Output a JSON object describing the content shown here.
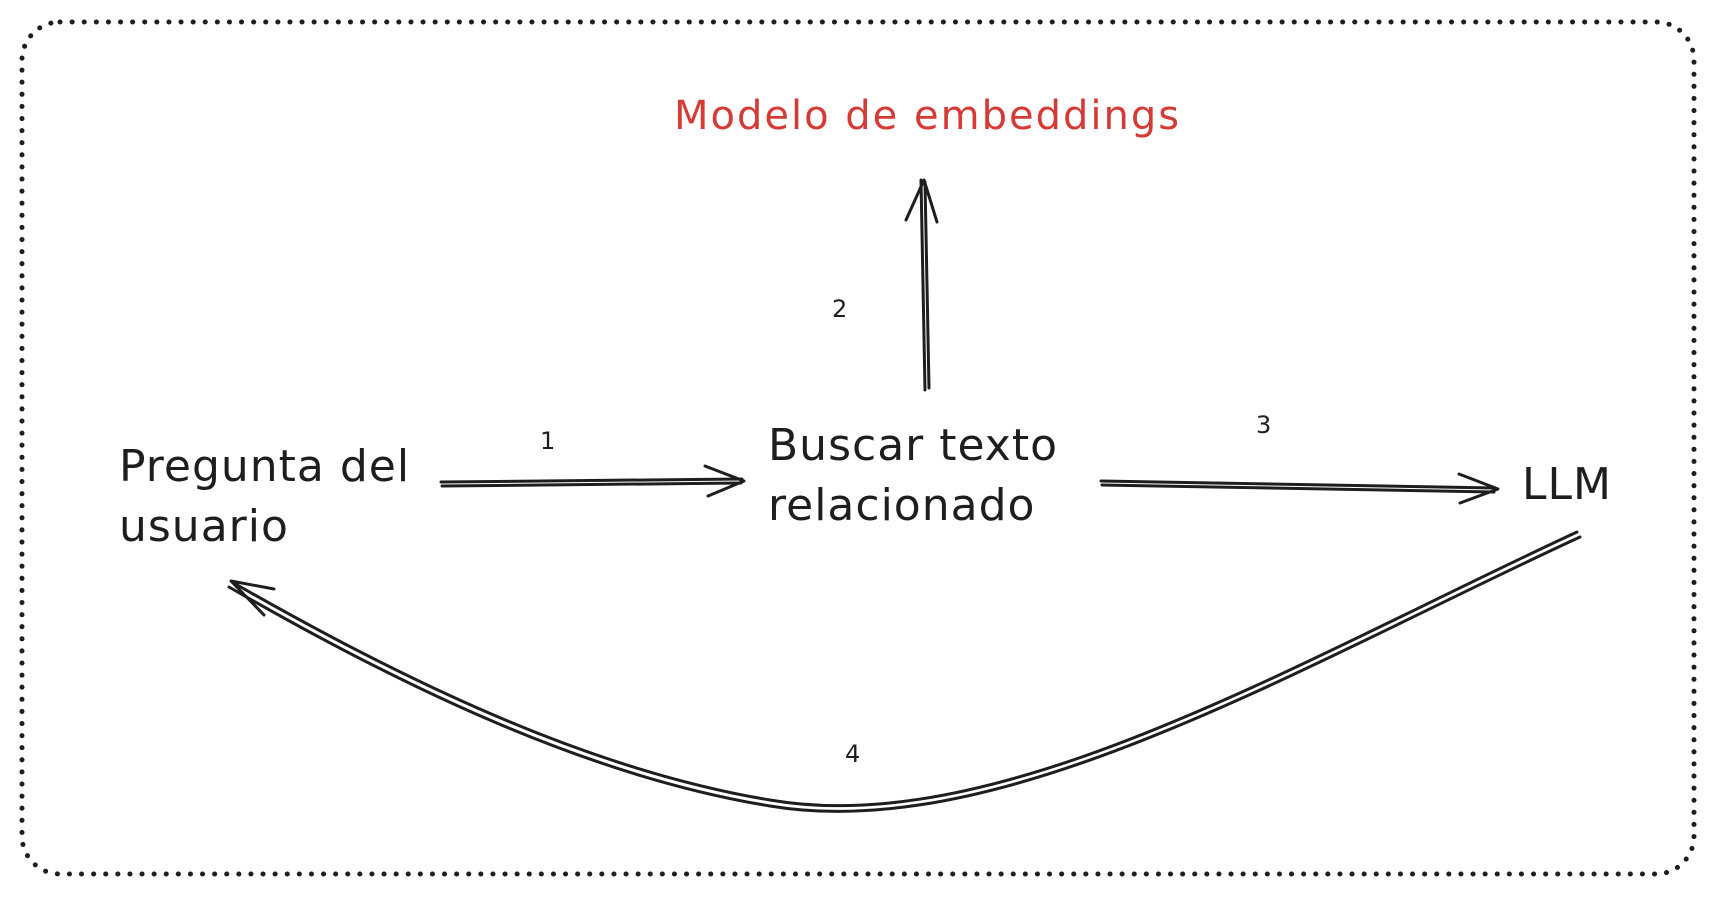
{
  "title": {
    "text": "Modelo de embeddings",
    "color": "#d63a35"
  },
  "nodes": {
    "question": {
      "line1": "Pregunta del",
      "line2": "usuario"
    },
    "search": {
      "line1": "Buscar texto",
      "line2": "relacionado"
    },
    "llm": {
      "text": "LLM"
    }
  },
  "steps": {
    "s1": "1",
    "s2": "2",
    "s3": "3",
    "s4": "4"
  },
  "colors": {
    "stroke": "#1e1e1e",
    "accent": "#d63a35",
    "background": "#ffffff"
  }
}
